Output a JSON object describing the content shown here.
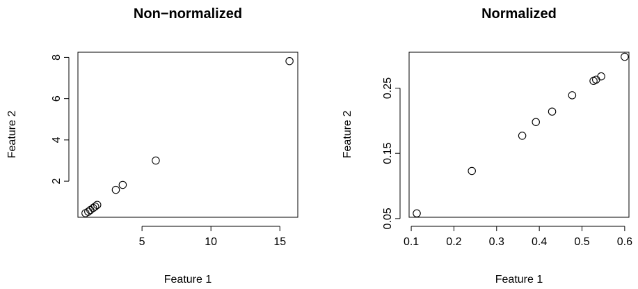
{
  "chart_data": [
    {
      "type": "scatter",
      "title": "Non−normalized",
      "xlabel": "Feature 1",
      "ylabel": "Feature 2",
      "xlim": [
        0.35,
        16.3
      ],
      "ylim": [
        0.25,
        8.25
      ],
      "xticks": [
        5,
        10,
        15
      ],
      "yticks": [
        2,
        4,
        6,
        8
      ],
      "x": [
        0.9,
        1.1,
        1.25,
        1.45,
        1.6,
        1.75,
        3.1,
        3.6,
        6.0,
        15.7
      ],
      "y": [
        0.45,
        0.52,
        0.6,
        0.7,
        0.77,
        0.85,
        1.58,
        1.82,
        3.0,
        7.82
      ]
    },
    {
      "type": "scatter",
      "title": "Normalized",
      "xlabel": "Feature 1",
      "ylabel": "Feature 2",
      "xlim": [
        0.095,
        0.61
      ],
      "ylim": [
        0.052,
        0.305
      ],
      "xticks": [
        0.1,
        0.2,
        0.3,
        0.4,
        0.5,
        0.6
      ],
      "yticks": [
        0.05,
        0.15,
        0.25
      ],
      "x": [
        0.113,
        0.242,
        0.36,
        0.392,
        0.43,
        0.477,
        0.527,
        0.533,
        0.545,
        0.6
      ],
      "y": [
        0.058,
        0.123,
        0.177,
        0.198,
        0.214,
        0.239,
        0.261,
        0.263,
        0.268,
        0.298
      ]
    }
  ]
}
